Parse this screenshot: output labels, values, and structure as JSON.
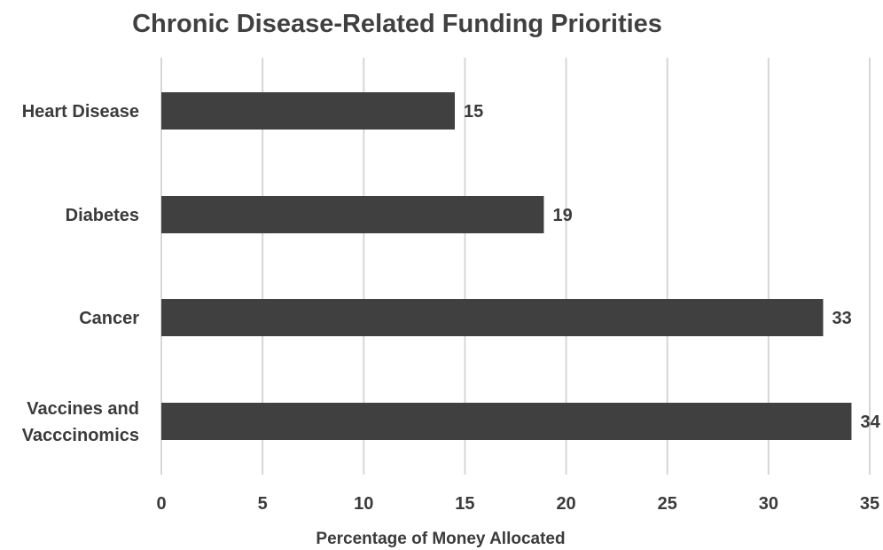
{
  "chart_data": {
    "type": "bar",
    "orientation": "horizontal",
    "title": "Chronic Disease-Related Funding Priorities",
    "xlabel": "Percentage of Money Allocated",
    "ylabel": "",
    "categories": [
      [
        "Heart Disease"
      ],
      [
        "Diabetes"
      ],
      [
        "Cancer"
      ],
      [
        "Vaccines and",
        "Vacccinomics"
      ]
    ],
    "values": [
      14.5,
      18.9,
      32.7,
      34.1
    ],
    "data_labels": [
      "15",
      "19",
      "33",
      "34"
    ],
    "xlim": [
      0,
      35
    ],
    "xticks": [
      0,
      5,
      10,
      15,
      20,
      25,
      30,
      35
    ],
    "grid": true,
    "legend": "none",
    "colors": {
      "bar": "#404040",
      "grid": "#d6d6d6",
      "text": "#3b3b3b"
    }
  }
}
